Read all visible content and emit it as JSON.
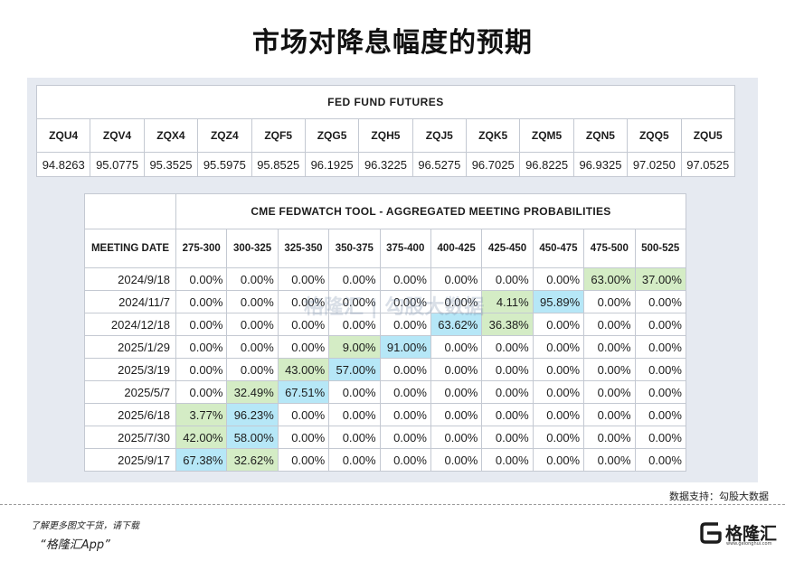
{
  "title": "市场对降息幅度的预期",
  "fed_fund_futures": {
    "title": "FED FUND FUTURES",
    "contracts": [
      "ZQU4",
      "ZQV4",
      "ZQX4",
      "ZQZ4",
      "ZQF5",
      "ZQG5",
      "ZQH5",
      "ZQJ5",
      "ZQK5",
      "ZQM5",
      "ZQN5",
      "ZQQ5",
      "ZQU5"
    ],
    "prices": [
      "94.8263",
      "95.0775",
      "95.3525",
      "95.5975",
      "95.8525",
      "96.1925",
      "96.3225",
      "96.5275",
      "96.7025",
      "96.8225",
      "96.9325",
      "97.0250",
      "97.0525"
    ]
  },
  "fedwatch": {
    "title": "CME FEDWATCH TOOL - AGGREGATED MEETING PROBABILITIES",
    "date_header": "MEETING DATE",
    "ranges": [
      "275-300",
      "300-325",
      "325-350",
      "350-375",
      "375-400",
      "400-425",
      "425-450",
      "450-475",
      "475-500",
      "500-525"
    ],
    "rows": [
      {
        "date": "2024/9/18",
        "values": [
          "0.00%",
          "0.00%",
          "0.00%",
          "0.00%",
          "0.00%",
          "0.00%",
          "0.00%",
          "0.00%",
          "63.00%",
          "37.00%"
        ],
        "highlight": [
          "",
          "",
          "",
          "",
          "",
          "",
          "",
          "",
          "green",
          "green"
        ]
      },
      {
        "date": "2024/11/7",
        "values": [
          "0.00%",
          "0.00%",
          "0.00%",
          "0.00%",
          "0.00%",
          "0.00%",
          "4.11%",
          "95.89%",
          "0.00%",
          "0.00%"
        ],
        "highlight": [
          "",
          "",
          "",
          "",
          "",
          "",
          "green",
          "blue",
          "",
          ""
        ]
      },
      {
        "date": "2024/12/18",
        "values": [
          "0.00%",
          "0.00%",
          "0.00%",
          "0.00%",
          "0.00%",
          "63.62%",
          "36.38%",
          "0.00%",
          "0.00%",
          "0.00%"
        ],
        "highlight": [
          "",
          "",
          "",
          "",
          "",
          "blue",
          "green",
          "",
          "",
          ""
        ]
      },
      {
        "date": "2025/1/29",
        "values": [
          "0.00%",
          "0.00%",
          "0.00%",
          "9.00%",
          "91.00%",
          "0.00%",
          "0.00%",
          "0.00%",
          "0.00%",
          "0.00%"
        ],
        "highlight": [
          "",
          "",
          "",
          "green",
          "blue",
          "",
          "",
          "",
          "",
          ""
        ]
      },
      {
        "date": "2025/3/19",
        "values": [
          "0.00%",
          "0.00%",
          "43.00%",
          "57.00%",
          "0.00%",
          "0.00%",
          "0.00%",
          "0.00%",
          "0.00%",
          "0.00%"
        ],
        "highlight": [
          "",
          "",
          "green",
          "blue",
          "",
          "",
          "",
          "",
          "",
          ""
        ]
      },
      {
        "date": "2025/5/7",
        "values": [
          "0.00%",
          "32.49%",
          "67.51%",
          "0.00%",
          "0.00%",
          "0.00%",
          "0.00%",
          "0.00%",
          "0.00%",
          "0.00%"
        ],
        "highlight": [
          "",
          "green",
          "blue",
          "",
          "",
          "",
          "",
          "",
          "",
          ""
        ]
      },
      {
        "date": "2025/6/18",
        "values": [
          "3.77%",
          "96.23%",
          "0.00%",
          "0.00%",
          "0.00%",
          "0.00%",
          "0.00%",
          "0.00%",
          "0.00%",
          "0.00%"
        ],
        "highlight": [
          "green",
          "blue",
          "",
          "",
          "",
          "",
          "",
          "",
          "",
          ""
        ]
      },
      {
        "date": "2025/7/30",
        "values": [
          "42.00%",
          "58.00%",
          "0.00%",
          "0.00%",
          "0.00%",
          "0.00%",
          "0.00%",
          "0.00%",
          "0.00%",
          "0.00%"
        ],
        "highlight": [
          "green",
          "blue",
          "",
          "",
          "",
          "",
          "",
          "",
          "",
          ""
        ]
      },
      {
        "date": "2025/9/17",
        "values": [
          "67.38%",
          "32.62%",
          "0.00%",
          "0.00%",
          "0.00%",
          "0.00%",
          "0.00%",
          "0.00%",
          "0.00%",
          "0.00%"
        ],
        "highlight": [
          "blue",
          "green",
          "",
          "",
          "",
          "",
          "",
          "",
          "",
          ""
        ]
      }
    ]
  },
  "watermark": "格隆汇 | 勾股大数据",
  "credit": "数据支持：勾股大数据",
  "footer": {
    "line1": "了解更多图文干货，请下载",
    "line2": "“格隆汇App”"
  },
  "logo": {
    "name": "格隆汇",
    "url": "www.gelonghui.com"
  },
  "colors": {
    "highlight_green": "#d4ecc5",
    "highlight_blue": "#b6e7f7",
    "panel_background": "#e6eaf1"
  }
}
